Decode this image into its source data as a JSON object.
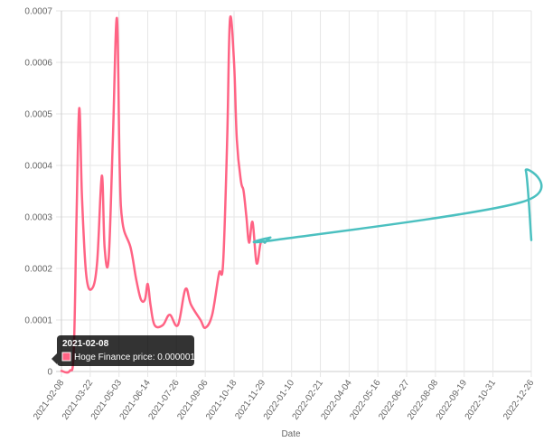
{
  "chart_data": {
    "type": "line",
    "xlabel": "Date",
    "ylabel": "",
    "ylim": [
      0,
      0.0007
    ],
    "yticks": [
      "0",
      "0.0001",
      "0.0002",
      "0.0003",
      "0.0004",
      "0.0005",
      "0.0006",
      "0.0007"
    ],
    "xlim": [
      "2021-02-08",
      "2022-12-26"
    ],
    "xticks": [
      "2021-02-08",
      "2021-03-22",
      "2021-05-03",
      "2021-06-14",
      "2021-07-26",
      "2021-09-06",
      "2021-10-18",
      "2021-11-29",
      "2022-01-10",
      "2022-02-21",
      "2022-04-04",
      "2022-05-16",
      "2022-06-27",
      "2022-08-08",
      "2022-09-19",
      "2022-10-31",
      "2022-12-26"
    ],
    "grid": true,
    "series": [
      {
        "name": "Hoge Finance price",
        "color": "#ff6384",
        "points": [
          [
            "2021-02-08",
            1e-06
          ],
          [
            "2021-02-20",
            1e-06
          ],
          [
            "2021-02-26",
            4e-05
          ],
          [
            "2021-03-02",
            0.0003
          ],
          [
            "2021-03-06",
            0.000511
          ],
          [
            "2021-03-10",
            0.00034
          ],
          [
            "2021-03-16",
            0.00019
          ],
          [
            "2021-03-24",
            0.00016
          ],
          [
            "2021-04-01",
            0.00021
          ],
          [
            "2021-04-08",
            0.00038
          ],
          [
            "2021-04-12",
            0.00024
          ],
          [
            "2021-04-18",
            0.00022
          ],
          [
            "2021-04-24",
            0.00045
          ],
          [
            "2021-04-30",
            0.000686
          ],
          [
            "2021-05-04",
            0.0004
          ],
          [
            "2021-05-08",
            0.00029
          ],
          [
            "2021-05-20",
            0.00024
          ],
          [
            "2021-05-28",
            0.00018
          ],
          [
            "2021-06-04",
            0.00014
          ],
          [
            "2021-06-10",
            0.00014
          ],
          [
            "2021-06-14",
            0.00017
          ],
          [
            "2021-06-18",
            0.00013
          ],
          [
            "2021-06-24",
            9e-05
          ],
          [
            "2021-07-06",
            9e-05
          ],
          [
            "2021-07-16",
            0.00011
          ],
          [
            "2021-07-28",
            9e-05
          ],
          [
            "2021-08-08",
            0.00016
          ],
          [
            "2021-08-16",
            0.00013
          ],
          [
            "2021-08-30",
            0.0001
          ],
          [
            "2021-09-06",
            8.5e-05
          ],
          [
            "2021-09-16",
            0.00011
          ],
          [
            "2021-09-26",
            0.00019
          ],
          [
            "2021-10-02",
            0.00021
          ],
          [
            "2021-10-08",
            0.00045
          ],
          [
            "2021-10-12",
            0.000683
          ],
          [
            "2021-10-18",
            0.0006
          ],
          [
            "2021-10-22",
            0.00045
          ],
          [
            "2021-10-28",
            0.00037
          ],
          [
            "2021-11-01",
            0.00035
          ],
          [
            "2021-11-05",
            0.0003
          ],
          [
            "2021-11-09",
            0.00025
          ],
          [
            "2021-11-14",
            0.00029
          ],
          [
            "2021-11-20",
            0.00021
          ],
          [
            "2021-11-26",
            0.00025
          ],
          [
            "2021-12-02",
            0.00025
          ]
        ]
      },
      {
        "name": "",
        "color": "#4bc0c0",
        "points": [
          [
            "2021-12-02",
            0.00025
          ],
          [
            "2021-12-10",
            0.00026
          ],
          [
            "2021-12-16",
            0.000255
          ],
          [
            "2022-12-10",
            0.000328
          ],
          [
            "2022-12-18",
            0.00039
          ],
          [
            "2022-12-26",
            0.000255
          ]
        ]
      }
    ],
    "tooltip": {
      "title": "2021-02-08",
      "label": "Hoge Finance price: 0.000001",
      "color": "#ff6384"
    }
  }
}
